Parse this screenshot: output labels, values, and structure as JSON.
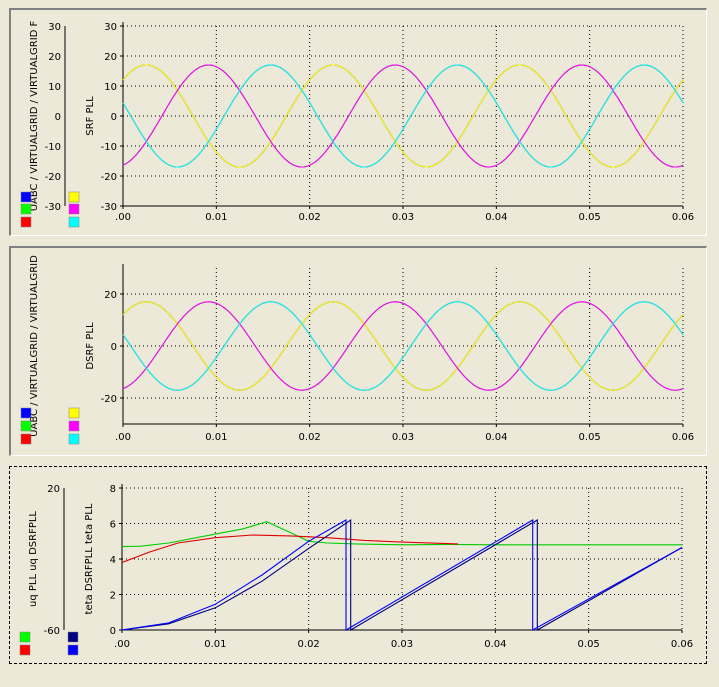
{
  "chart_data": [
    {
      "type": "line",
      "outer_ylabel": "UABC / VIRTUALGRID / VIRTUALGRID F",
      "ylabel": "SRF PLL",
      "xlim": [
        0,
        0.06
      ],
      "ylim": [
        -30,
        30
      ],
      "x_ticks": [
        0,
        0.01,
        0.02,
        0.03,
        0.04,
        0.05,
        0.06
      ],
      "x_tick_labels": [
        ".00",
        "0.01",
        "0.02",
        "0.03",
        "0.04",
        "0.05",
        "0.06"
      ],
      "y_ticks": [
        -30,
        -20,
        -10,
        0,
        10,
        20,
        30
      ],
      "y_tick_labels": [
        "-30",
        "-20",
        "-10",
        "0",
        "10",
        "20",
        "30"
      ],
      "inner_axis_ticks": [
        "30",
        "20",
        "10",
        "0",
        "-10",
        "-20",
        "-30"
      ],
      "grid": true,
      "series": [
        {
          "color": "#0000cc",
          "amplitude": 17,
          "frequency_hz": 50,
          "phase_deg": 0
        },
        {
          "color": "#00cc00",
          "amplitude": 17,
          "frequency_hz": 50,
          "phase_deg": -120
        },
        {
          "color": "#dd0000",
          "amplitude": 17,
          "frequency_hz": 50,
          "phase_deg": 120
        },
        {
          "color": "#ffff00",
          "amplitude": 17,
          "frequency_hz": 50,
          "phase_deg": 0
        },
        {
          "color": "#ff00ff",
          "amplitude": 17,
          "frequency_hz": 50,
          "phase_deg": -120
        },
        {
          "color": "#00ffff",
          "amplitude": 17,
          "frequency_hz": 50,
          "phase_deg": 120
        }
      ],
      "legend_swatches": [
        "#0000ff",
        "#00ff00",
        "#ff0000",
        "#ffff00",
        "#ff00ff",
        "#00ffff"
      ]
    },
    {
      "type": "line",
      "outer_ylabel": "UABC / VIRTUALGRID / VIRTUALGRID",
      "ylabel": "DSRF PLL",
      "xlim": [
        0,
        0.06
      ],
      "ylim": [
        -30,
        30
      ],
      "x_ticks": [
        0,
        0.01,
        0.02,
        0.03,
        0.04,
        0.05,
        0.06
      ],
      "x_tick_labels": [
        ".00",
        "0.01",
        "0.02",
        "0.03",
        "0.04",
        "0.05",
        "0.06"
      ],
      "y_ticks": [
        -20,
        0,
        20
      ],
      "y_tick_labels": [
        "-20",
        "0",
        "20"
      ],
      "grid": true,
      "series": [
        {
          "color": "#0000cc",
          "amplitude": 17,
          "frequency_hz": 50,
          "phase_deg": 0
        },
        {
          "color": "#00cc00",
          "amplitude": 17,
          "frequency_hz": 50,
          "phase_deg": -120
        },
        {
          "color": "#dd0000",
          "amplitude": 17,
          "frequency_hz": 50,
          "phase_deg": 120
        },
        {
          "color": "#ffff00",
          "amplitude": 17,
          "frequency_hz": 50,
          "phase_deg": 0
        },
        {
          "color": "#ff00ff",
          "amplitude": 17,
          "frequency_hz": 50,
          "phase_deg": -120
        },
        {
          "color": "#00ffff",
          "amplitude": 17,
          "frequency_hz": 50,
          "phase_deg": 120
        }
      ],
      "legend_swatches": [
        "#0000ff",
        "#00ff00",
        "#ff0000",
        "#ffff00",
        "#ff00ff",
        "#00ffff"
      ]
    },
    {
      "type": "line",
      "outer_ylabel": "uq PLL uq DSRFPLL",
      "ylabel": "teta DSRFPLL teta PLL",
      "xlim": [
        0,
        0.06
      ],
      "ylim": [
        0,
        8
      ],
      "x_ticks": [
        0,
        0.01,
        0.02,
        0.03,
        0.04,
        0.05,
        0.06
      ],
      "x_tick_labels": [
        ".00",
        "0.01",
        "0.02",
        "0.03",
        "0.04",
        "0.05",
        "0.06"
      ],
      "y_ticks": [
        0,
        2,
        4,
        6,
        8
      ],
      "y_tick_labels": [
        "0",
        "2",
        "4",
        "6",
        "8"
      ],
      "outer_axis_ticks": [
        "-60",
        "20"
      ],
      "grid": true,
      "series": [
        {
          "color": "#00cc00",
          "x": [
            0,
            0.002,
            0.005,
            0.01,
            0.013,
            0.0155,
            0.018,
            0.02,
            0.022,
            0.025,
            0.03,
            0.035,
            0.04,
            0.06
          ],
          "y": [
            4.7,
            4.72,
            4.9,
            5.4,
            5.7,
            6.1,
            5.5,
            5.0,
            4.9,
            4.85,
            4.8,
            4.82,
            4.8,
            4.8
          ]
        },
        {
          "color": "#dd0000",
          "x": [
            0,
            0.003,
            0.006,
            0.01,
            0.014,
            0.018,
            0.022,
            0.026,
            0.03,
            0.036
          ],
          "y": [
            3.8,
            4.4,
            4.9,
            5.2,
            5.35,
            5.3,
            5.2,
            5.05,
            4.95,
            4.85
          ]
        },
        {
          "color": "#000080",
          "x": [
            0,
            0.005,
            0.01,
            0.015,
            0.02,
            0.0245,
            0.0245,
            0.0445,
            0.0445,
            0.06
          ],
          "y": [
            0,
            0.35,
            1.25,
            2.75,
            4.6,
            6.2,
            0,
            6.2,
            0,
            4.65
          ]
        },
        {
          "color": "#0000ff",
          "x": [
            0,
            0.005,
            0.01,
            0.015,
            0.02,
            0.024,
            0.024,
            0.044,
            0.044,
            0.06
          ],
          "y": [
            0,
            0.4,
            1.45,
            3.1,
            5.0,
            6.2,
            0,
            6.2,
            0,
            4.65
          ]
        }
      ],
      "legend_swatches": [
        "#00ff00",
        "#ff0000",
        "#000080",
        "#0000ff"
      ]
    }
  ]
}
